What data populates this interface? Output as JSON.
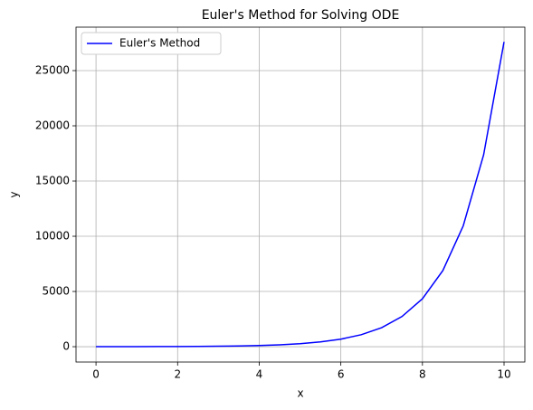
{
  "chart_data": {
    "type": "line",
    "title": "Euler's Method for Solving ODE",
    "x_label": "x",
    "y_label": "y",
    "x": [
      0,
      0.5,
      1,
      1.5,
      2,
      2.5,
      3,
      3.5,
      4,
      4.5,
      5,
      5.5,
      6,
      6.5,
      7,
      7.5,
      8,
      8.5,
      9,
      9.5,
      10
    ],
    "series": [
      {
        "name": "Euler's Method",
        "color": "#0000ff",
        "values": [
          3,
          4,
          7,
          11,
          17,
          27,
          43,
          68,
          107,
          170,
          271,
          430,
          682,
          1084,
          1721,
          2733,
          4340,
          6892,
          10944,
          17380,
          27600
        ]
      }
    ],
    "xlim": [
      -0.49,
      10.51
    ],
    "xticks": [
      0,
      2,
      4,
      6,
      8,
      10
    ],
    "ylim": [
      -1390,
      28934
    ],
    "yticks": [
      0,
      5000,
      10000,
      15000,
      20000,
      25000
    ],
    "grid": true,
    "legend": "upper-left"
  }
}
